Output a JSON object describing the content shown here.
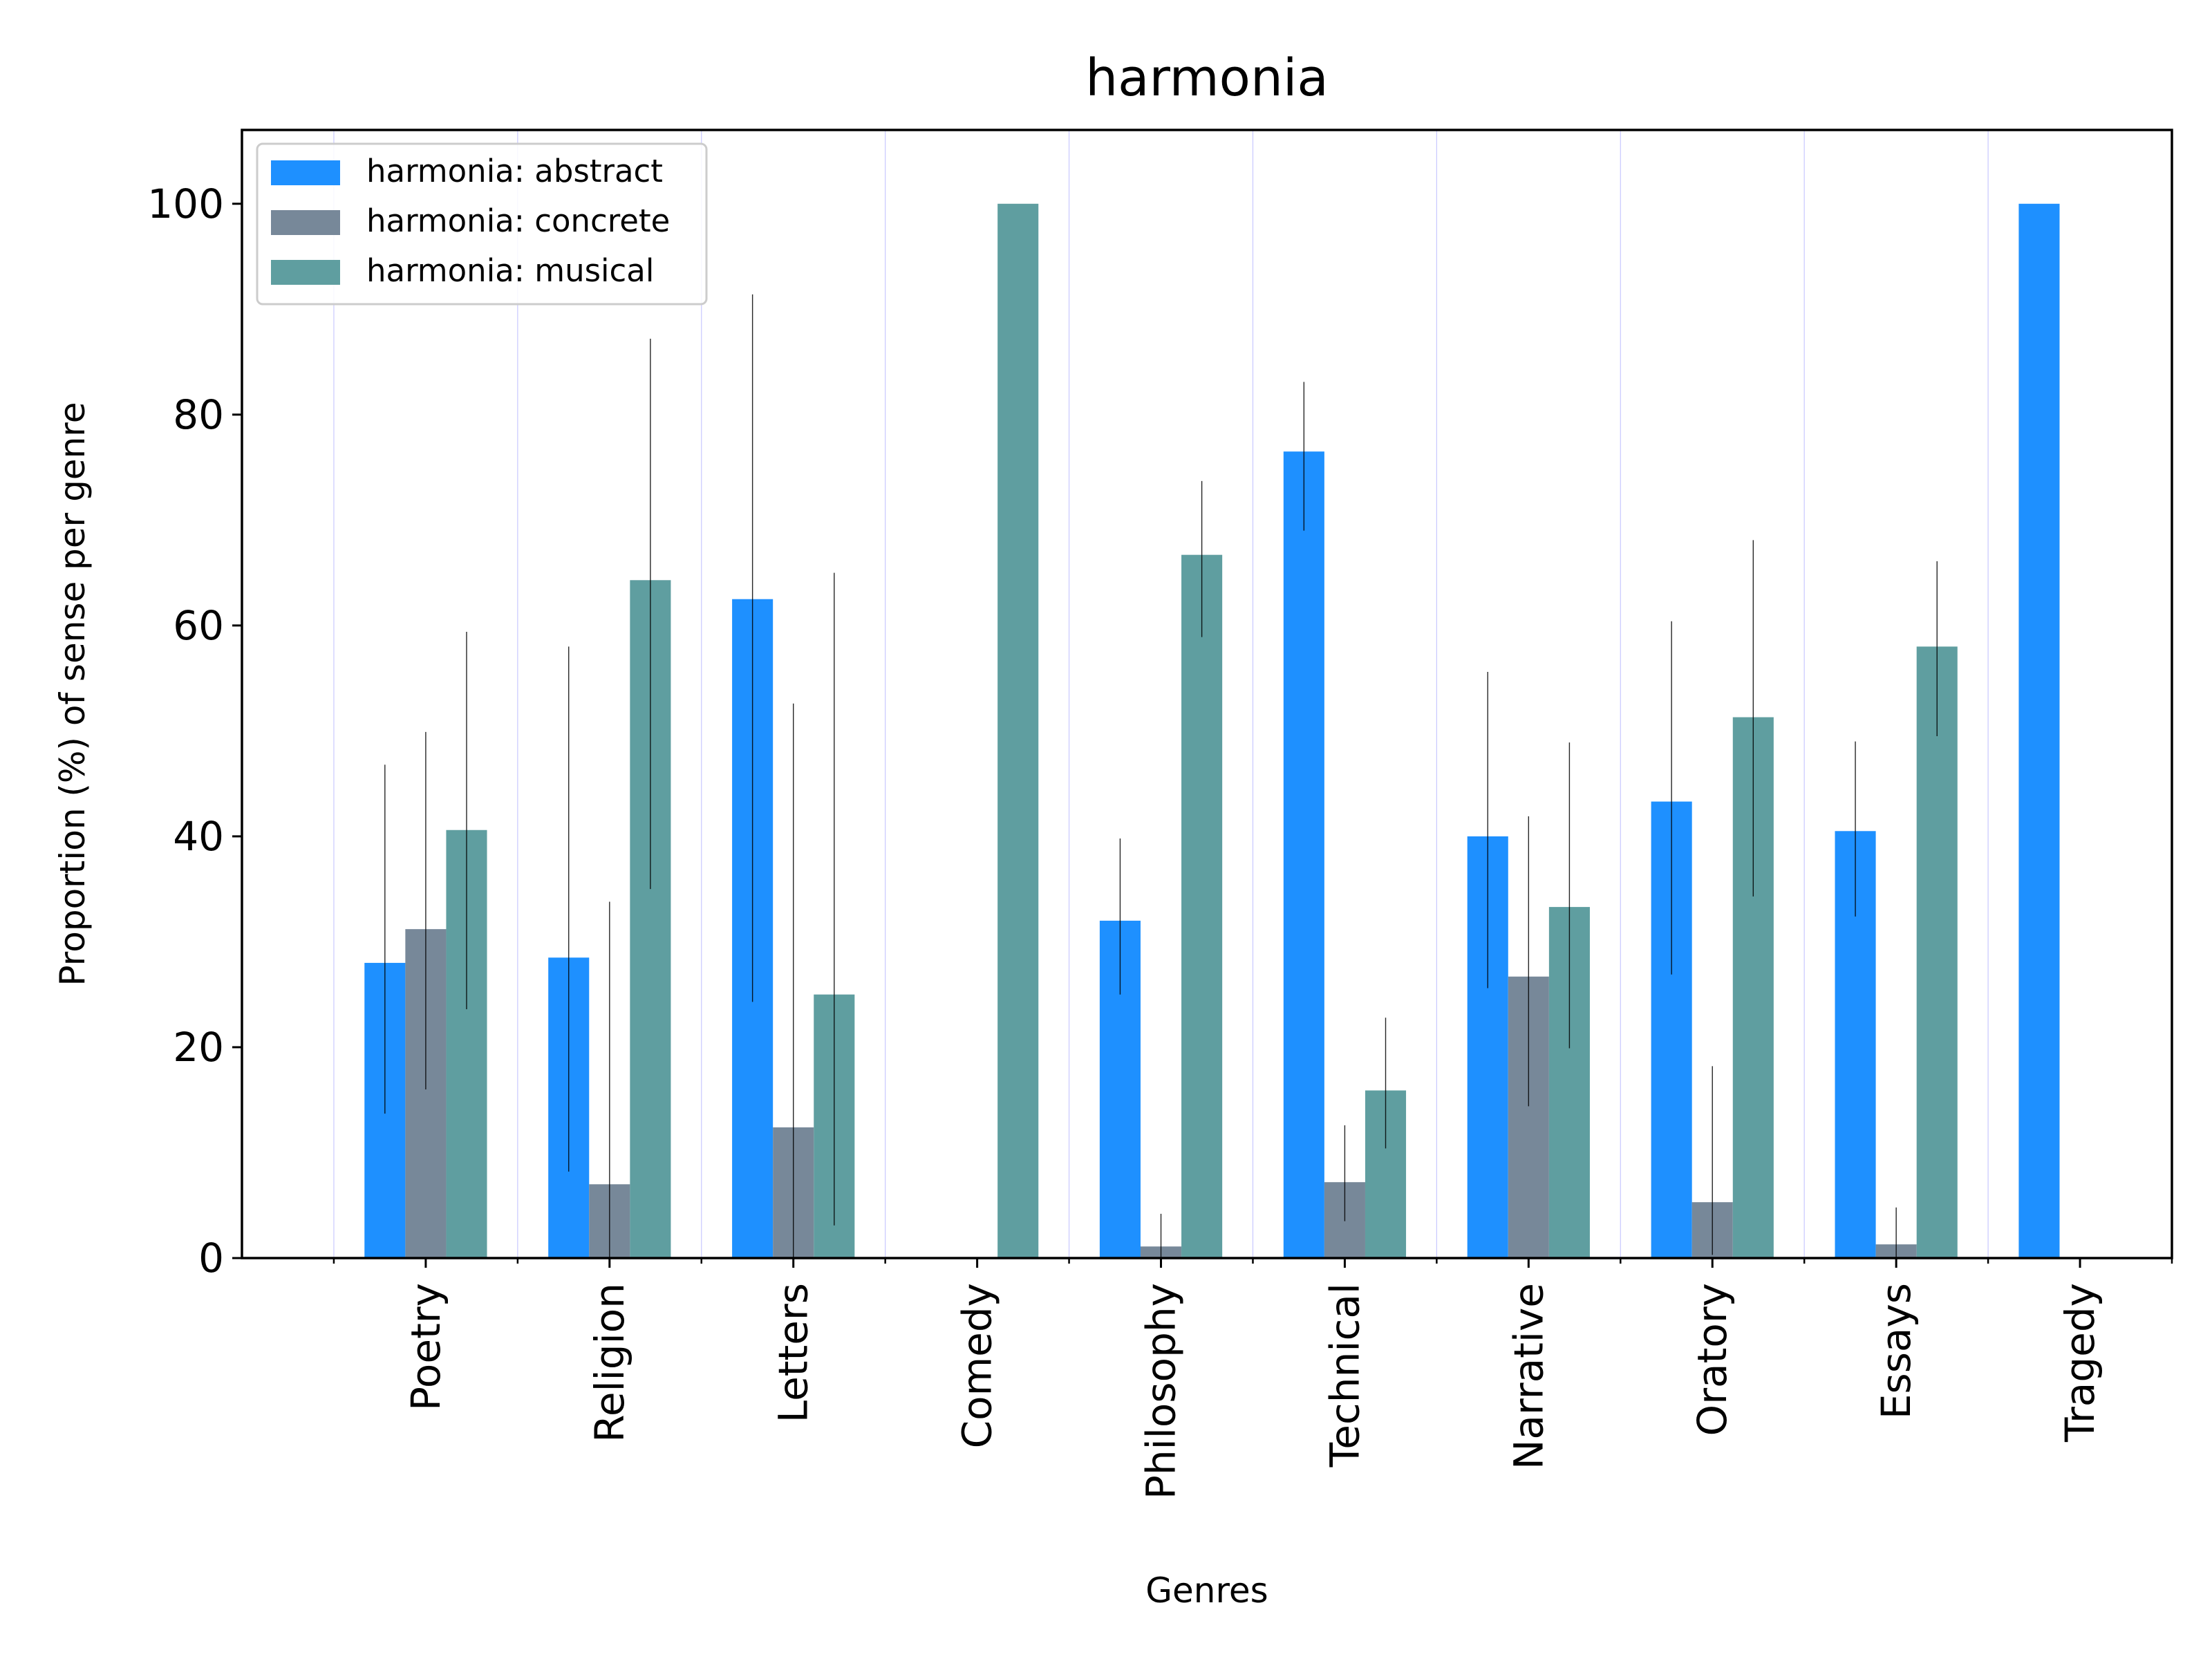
{
  "chart_data": {
    "type": "bar",
    "title": "harmonia",
    "xlabel": "Genres",
    "ylabel": "Proportion (%) of sense per genre",
    "ylim": [
      0,
      107
    ],
    "yticks": [
      0,
      20,
      40,
      60,
      80,
      100
    ],
    "grid": "vertical",
    "legend_position": "upper left",
    "categories": [
      "Poetry",
      "Religion",
      "Letters",
      "Comedy",
      "Philosophy",
      "Technical",
      "Narrative",
      "Oratory",
      "Essays",
      "Tragedy"
    ],
    "series": [
      {
        "name": "harmonia: abstract",
        "color": "#1e90ff",
        "values": [
          28,
          28.5,
          62.5,
          0,
          32,
          76.5,
          40,
          43.3,
          40.5,
          100
        ],
        "err_low": [
          13.7,
          8.2,
          24.3,
          null,
          25,
          69,
          25.6,
          26.9,
          32.4,
          null
        ],
        "err_high": [
          46.8,
          58,
          91.4,
          null,
          39.8,
          83.1,
          55.6,
          60.4,
          49,
          null
        ]
      },
      {
        "name": "harmonia: concrete",
        "color": "#778899",
        "values": [
          31.2,
          7,
          12.4,
          0,
          1.1,
          7.2,
          26.7,
          5.3,
          1.3,
          0
        ],
        "err_low": [
          16,
          0,
          0,
          null,
          0,
          3.5,
          14.4,
          0.3,
          0,
          null
        ],
        "err_high": [
          49.9,
          33.8,
          52.6,
          null,
          4.2,
          12.6,
          41.9,
          18.2,
          4.8,
          null
        ]
      },
      {
        "name": "harmonia: musical",
        "color": "#5f9ea0",
        "values": [
          40.6,
          64.3,
          25,
          100,
          66.7,
          15.9,
          33.3,
          51.3,
          58,
          0
        ],
        "err_low": [
          23.6,
          35,
          3.1,
          null,
          58.9,
          10.4,
          19.9,
          34.3,
          49.5,
          null
        ],
        "err_high": [
          59.4,
          87.2,
          65,
          null,
          73.7,
          22.8,
          48.9,
          68.1,
          66.1,
          null
        ]
      }
    ]
  }
}
